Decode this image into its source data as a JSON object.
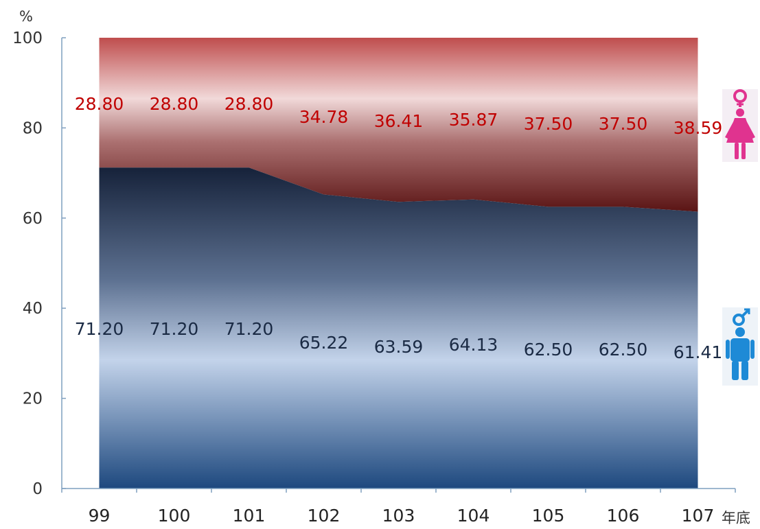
{
  "chart_data": {
    "type": "area",
    "stacked": true,
    "percent_stacked": true,
    "x": [
      "99",
      "100",
      "101",
      "102",
      "103",
      "104",
      "105",
      "106",
      "107"
    ],
    "xlabel": "年底",
    "ylabel": "%",
    "ylim": [
      0,
      100
    ],
    "yticks": [
      0,
      20,
      40,
      60,
      80,
      100
    ],
    "series": [
      {
        "key": "male",
        "icon": "male-figure-icon",
        "values": [
          71.2,
          71.2,
          71.2,
          65.22,
          63.59,
          64.13,
          62.5,
          62.5,
          61.41
        ],
        "labels": [
          "71.20",
          "71.20",
          "71.20",
          "65.22",
          "63.59",
          "64.13",
          "62.50",
          "62.50",
          "61.41"
        ],
        "color": "#1f3b66",
        "label_color": "#1a2a44"
      },
      {
        "key": "female",
        "icon": "female-figure-icon",
        "values": [
          28.8,
          28.8,
          28.8,
          34.78,
          36.41,
          35.87,
          37.5,
          37.5,
          38.59
        ],
        "labels": [
          "28.80",
          "28.80",
          "28.80",
          "34.78",
          "36.41",
          "35.87",
          "37.50",
          "37.50",
          "38.59"
        ],
        "color": "#b03a3a",
        "label_color": "#c00000"
      }
    ],
    "grid": false,
    "legend": "right (icons)"
  }
}
